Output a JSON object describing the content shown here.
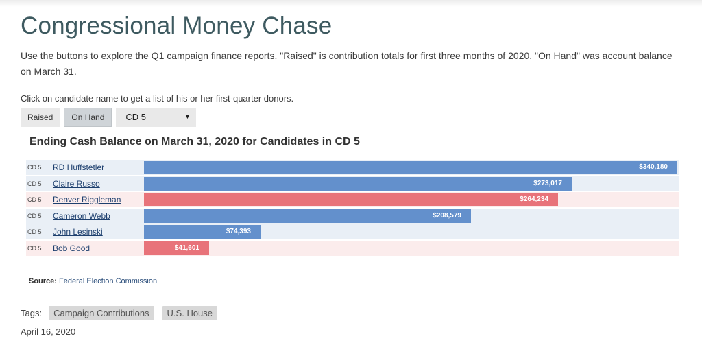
{
  "page": {
    "title": "Congressional Money Chase",
    "intro": "Use the buttons to explore the Q1 campaign finance reports. \"Raised\" is contribution totals for first three months of 2020. \"On Hand\" was account balance on March 31.",
    "hint": "Click on candidate name to get a list of his or her first-quarter donors."
  },
  "controls": {
    "raised_label": "Raised",
    "onhand_label": "On Hand",
    "district_selected": "CD 5",
    "dropdown_arrow": "▼"
  },
  "chart_data": {
    "type": "bar",
    "orientation": "horizontal",
    "title": "Ending Cash Balance on March 31, 2020 for Candidates in CD 5",
    "district_label": "CD 5",
    "categories": [
      "RD Huffstetler",
      "Claire Russo",
      "Denver Riggleman",
      "Cameron Webb",
      "John Lesinski",
      "Bob Good"
    ],
    "values": [
      340180,
      273017,
      264234,
      208579,
      74393,
      41601
    ],
    "value_labels": [
      "$340,180",
      "$273,017",
      "$264,234",
      "$208,579",
      "$74,393",
      "$41,601"
    ],
    "party": [
      "dem",
      "dem",
      "rep",
      "dem",
      "dem",
      "rep"
    ],
    "xlim": [
      0,
      340180
    ],
    "colors": {
      "dem": "#6390cc",
      "rep": "#e8737a"
    }
  },
  "source": {
    "label": "Source:",
    "text": "Federal Election Commission"
  },
  "tags": {
    "label": "Tags:",
    "items": [
      "Campaign Contributions",
      "U.S. House"
    ]
  },
  "date": "April 16, 2020"
}
